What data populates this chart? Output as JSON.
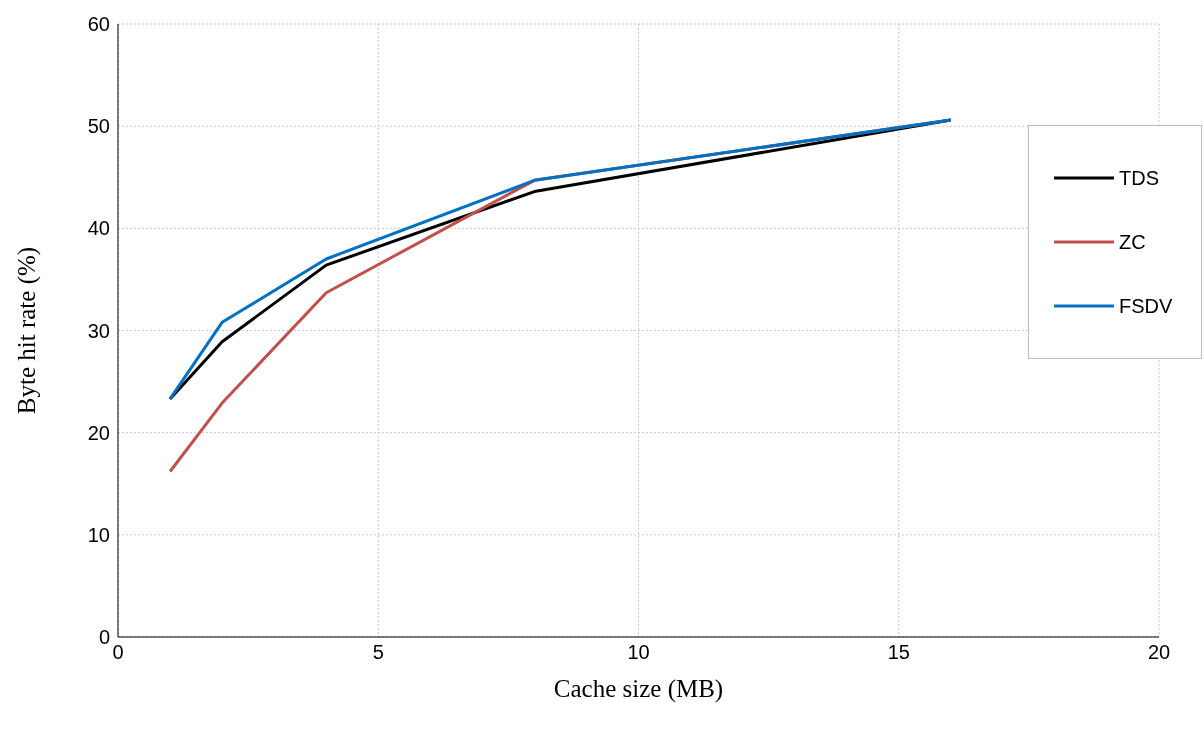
{
  "chart_data": {
    "type": "line",
    "xlabel": "Cache size (MB)",
    "ylabel": "Byte hit rate (%)",
    "x": [
      1,
      2,
      4,
      8,
      16
    ],
    "series": [
      {
        "name": "TDS",
        "color": "#000000",
        "values": [
          23.3,
          28.9,
          36.4,
          43.6,
          50.6
        ]
      },
      {
        "name": "ZC",
        "color": "#c0504d",
        "values": [
          16.2,
          22.9,
          33.7,
          44.7,
          50.6
        ]
      },
      {
        "name": "FSDV",
        "color": "#0070c0",
        "values": [
          23.3,
          30.8,
          37.0,
          44.7,
          50.6
        ]
      }
    ],
    "xlim": [
      0,
      20
    ],
    "xticks": [
      0,
      5,
      10,
      15,
      20
    ],
    "ylim": [
      0,
      60
    ],
    "yticks": [
      0,
      10,
      20,
      30,
      40,
      50,
      60
    ],
    "grid": true,
    "legend": "right",
    "marker": "none",
    "line_style": "solid"
  }
}
